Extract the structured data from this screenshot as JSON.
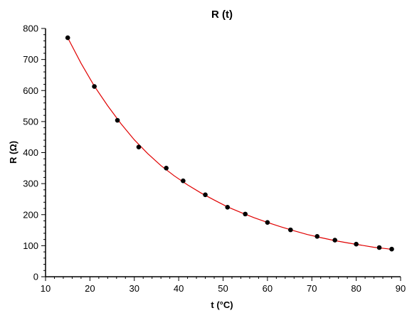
{
  "chart_data": {
    "type": "scatter",
    "title": "R (t)",
    "xlabel": "t (°C)",
    "ylabel": "R (Ω)",
    "xlim": [
      10,
      90
    ],
    "ylim": [
      0,
      800
    ],
    "xticks": [
      10,
      20,
      30,
      40,
      50,
      60,
      70,
      80,
      90
    ],
    "yticks": [
      0,
      100,
      200,
      300,
      400,
      500,
      600,
      700,
      800
    ],
    "grid": false,
    "series": [
      {
        "type": "scatter",
        "color": "#000000",
        "points": [
          {
            "x": 15.0,
            "y": 770
          },
          {
            "x": 21.0,
            "y": 613
          },
          {
            "x": 26.2,
            "y": 504
          },
          {
            "x": 31.0,
            "y": 418
          },
          {
            "x": 37.2,
            "y": 350
          },
          {
            "x": 41.0,
            "y": 309
          },
          {
            "x": 46.0,
            "y": 264
          },
          {
            "x": 51.0,
            "y": 224
          },
          {
            "x": 55.0,
            "y": 202
          },
          {
            "x": 60.0,
            "y": 175
          },
          {
            "x": 65.2,
            "y": 151
          },
          {
            "x": 71.2,
            "y": 130
          },
          {
            "x": 75.2,
            "y": 118
          },
          {
            "x": 80.0,
            "y": 105
          },
          {
            "x": 85.2,
            "y": 94
          },
          {
            "x": 88.0,
            "y": 89
          }
        ]
      },
      {
        "type": "line",
        "color": "#e00000",
        "points": [
          {
            "x": 15,
            "y": 770
          },
          {
            "x": 18,
            "y": 688
          },
          {
            "x": 21,
            "y": 614
          },
          {
            "x": 24,
            "y": 551
          },
          {
            "x": 27,
            "y": 493
          },
          {
            "x": 30,
            "y": 441
          },
          {
            "x": 33,
            "y": 397
          },
          {
            "x": 36,
            "y": 358
          },
          {
            "x": 39,
            "y": 325
          },
          {
            "x": 42,
            "y": 296
          },
          {
            "x": 45,
            "y": 270
          },
          {
            "x": 48,
            "y": 247
          },
          {
            "x": 51,
            "y": 225
          },
          {
            "x": 54,
            "y": 207
          },
          {
            "x": 57,
            "y": 190
          },
          {
            "x": 60,
            "y": 175
          },
          {
            "x": 63,
            "y": 161
          },
          {
            "x": 66,
            "y": 148
          },
          {
            "x": 69,
            "y": 136
          },
          {
            "x": 72,
            "y": 126
          },
          {
            "x": 75,
            "y": 117
          },
          {
            "x": 78,
            "y": 109
          },
          {
            "x": 81,
            "y": 102
          },
          {
            "x": 84,
            "y": 95
          },
          {
            "x": 87,
            "y": 90
          },
          {
            "x": 88,
            "y": 88
          }
        ]
      }
    ]
  }
}
